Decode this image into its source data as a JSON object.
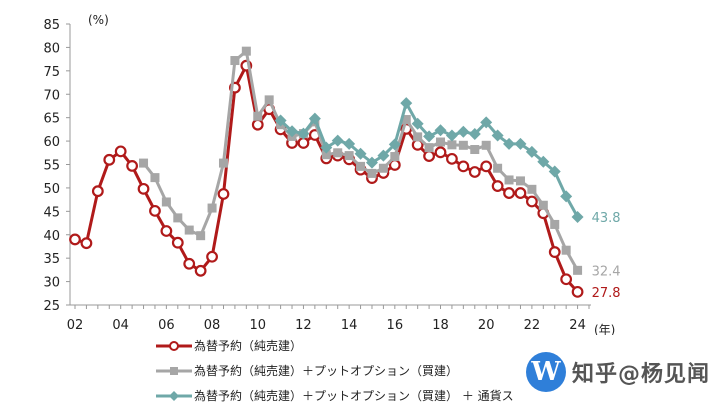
{
  "chart_data": {
    "type": "line",
    "title": "",
    "ylabel": "(%)",
    "xlabel": "(年)",
    "ylim": [
      25,
      85
    ],
    "yticks": [
      25,
      30,
      35,
      40,
      45,
      50,
      55,
      60,
      65,
      70,
      75,
      80,
      85
    ],
    "xtick_labels": [
      "02",
      "04",
      "06",
      "08",
      "10",
      "12",
      "14",
      "16",
      "18",
      "20",
      "22",
      "24"
    ],
    "xlim": [
      2002,
      2024.5
    ],
    "grid": false,
    "legend_position": "bottom",
    "series": [
      {
        "name": "為替予約（純売建）",
        "color": "#b01a1a",
        "marker": "circle-open",
        "x_start": 2002.0,
        "step": 0.5,
        "values": [
          39.0,
          38.2,
          49.3,
          56.0,
          57.8,
          54.7,
          49.8,
          45.1,
          40.8,
          38.3,
          33.8,
          32.3,
          35.3,
          48.7,
          71.4,
          76.1,
          63.5,
          66.8,
          62.5,
          59.6,
          59.6,
          61.3,
          56.3,
          56.9,
          56.1,
          53.9,
          52.1,
          53.2,
          54.9,
          62.6,
          59.2,
          56.8,
          57.6,
          56.2,
          54.6,
          53.4,
          54.6,
          50.4,
          48.9,
          48.9,
          47.1,
          44.6,
          36.3,
          30.5,
          27.8
        ],
        "end_label": "27.8"
      },
      {
        "name": "為替予約（純売建）＋プットオプション（買建）",
        "color": "#a6a6a6",
        "marker": "square",
        "x_start": 2005.0,
        "step": 0.5,
        "values": [
          55.3,
          52.2,
          47.0,
          43.6,
          41.0,
          39.8,
          45.7,
          55.3,
          77.2,
          79.2,
          65.3,
          68.8,
          63.5,
          61.0,
          61.6,
          64.1,
          57.1,
          57.5,
          56.9,
          54.6,
          53.1,
          54.2,
          56.7,
          64.6,
          60.9,
          58.6,
          59.8,
          59.2,
          59.1,
          58.2,
          59.1,
          54.2,
          51.7,
          51.5,
          49.7,
          46.3,
          42.2,
          36.7,
          32.4
        ],
        "end_label": "32.4"
      },
      {
        "name": "為替予約（純売建）＋プットオプション（買建） ＋ 通貨ス",
        "color": "#6fa8a8",
        "marker": "diamond",
        "x_start": 2011.0,
        "step": 0.5,
        "values": [
          64.4,
          62.1,
          61.6,
          64.8,
          58.6,
          60.1,
          59.4,
          57.3,
          55.4,
          56.9,
          59.3,
          68.1,
          63.7,
          61.0,
          62.3,
          61.2,
          62.0,
          61.5,
          64.0,
          61.2,
          59.4,
          59.4,
          57.7,
          55.6,
          53.5,
          48.2,
          43.8
        ],
        "end_label": "43.8"
      }
    ]
  },
  "legend": {
    "items": [
      {
        "label": "為替予約（純売建）"
      },
      {
        "label": "為替予約（純売建）＋プットオプション（買建）"
      },
      {
        "label": "為替予約（純売建）＋プットオプション（買建） ＋ 通貨ス"
      }
    ]
  },
  "watermark": {
    "logo_letter": "W",
    "text": "知乎@杨见闻"
  }
}
